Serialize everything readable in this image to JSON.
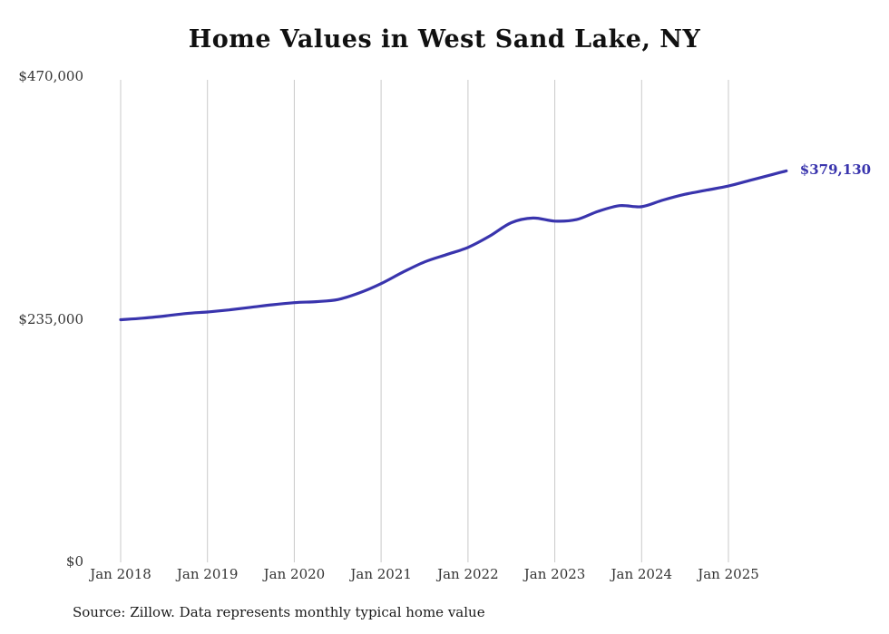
{
  "chart_data": {
    "type": "line",
    "title": "Home Values in West Sand Lake, NY",
    "series": [
      {
        "name": "Typical home value",
        "x": [
          "2018-01",
          "2018-04",
          "2018-07",
          "2018-10",
          "2019-01",
          "2019-04",
          "2019-07",
          "2019-10",
          "2020-01",
          "2020-04",
          "2020-07",
          "2020-10",
          "2021-01",
          "2021-04",
          "2021-07",
          "2021-10",
          "2022-01",
          "2022-04",
          "2022-07",
          "2022-10",
          "2023-01",
          "2023-04",
          "2023-07",
          "2023-10",
          "2024-01",
          "2024-04",
          "2024-07",
          "2024-10",
          "2025-01",
          "2025-04",
          "2025-07",
          "2025-09"
        ],
        "values": [
          235000,
          236500,
          238500,
          241000,
          242500,
          244500,
          247000,
          249500,
          251500,
          252500,
          254500,
          261000,
          270000,
          281000,
          291000,
          298000,
          305000,
          316000,
          329000,
          333500,
          330500,
          332000,
          340000,
          345500,
          344500,
          351000,
          356500,
          360500,
          364500,
          370000,
          375500,
          379130
        ]
      }
    ],
    "ylim": [
      0,
      470000
    ],
    "ytick_values": [
      470000,
      235000,
      0
    ],
    "ytick_labels": [
      "$470,000",
      "$235,000",
      "$0"
    ],
    "xtick_positions": [
      "2018-01",
      "2019-01",
      "2020-01",
      "2021-01",
      "2022-01",
      "2023-01",
      "2024-01",
      "2025-01"
    ],
    "xtick_labels": [
      "Jan 2018",
      "Jan 2019",
      "Jan 2020",
      "Jan 2021",
      "Jan 2022",
      "Jan 2023",
      "Jan 2024",
      "Jan 2025"
    ],
    "end_label": "$379,130",
    "end_value": 379130,
    "line_color": "#3934ad",
    "grid_color": "#c9c9c9",
    "grid": "vertical-only",
    "legend": "none"
  },
  "footer": {
    "source_text": "Source: Zillow. Data represents monthly typical home value"
  }
}
